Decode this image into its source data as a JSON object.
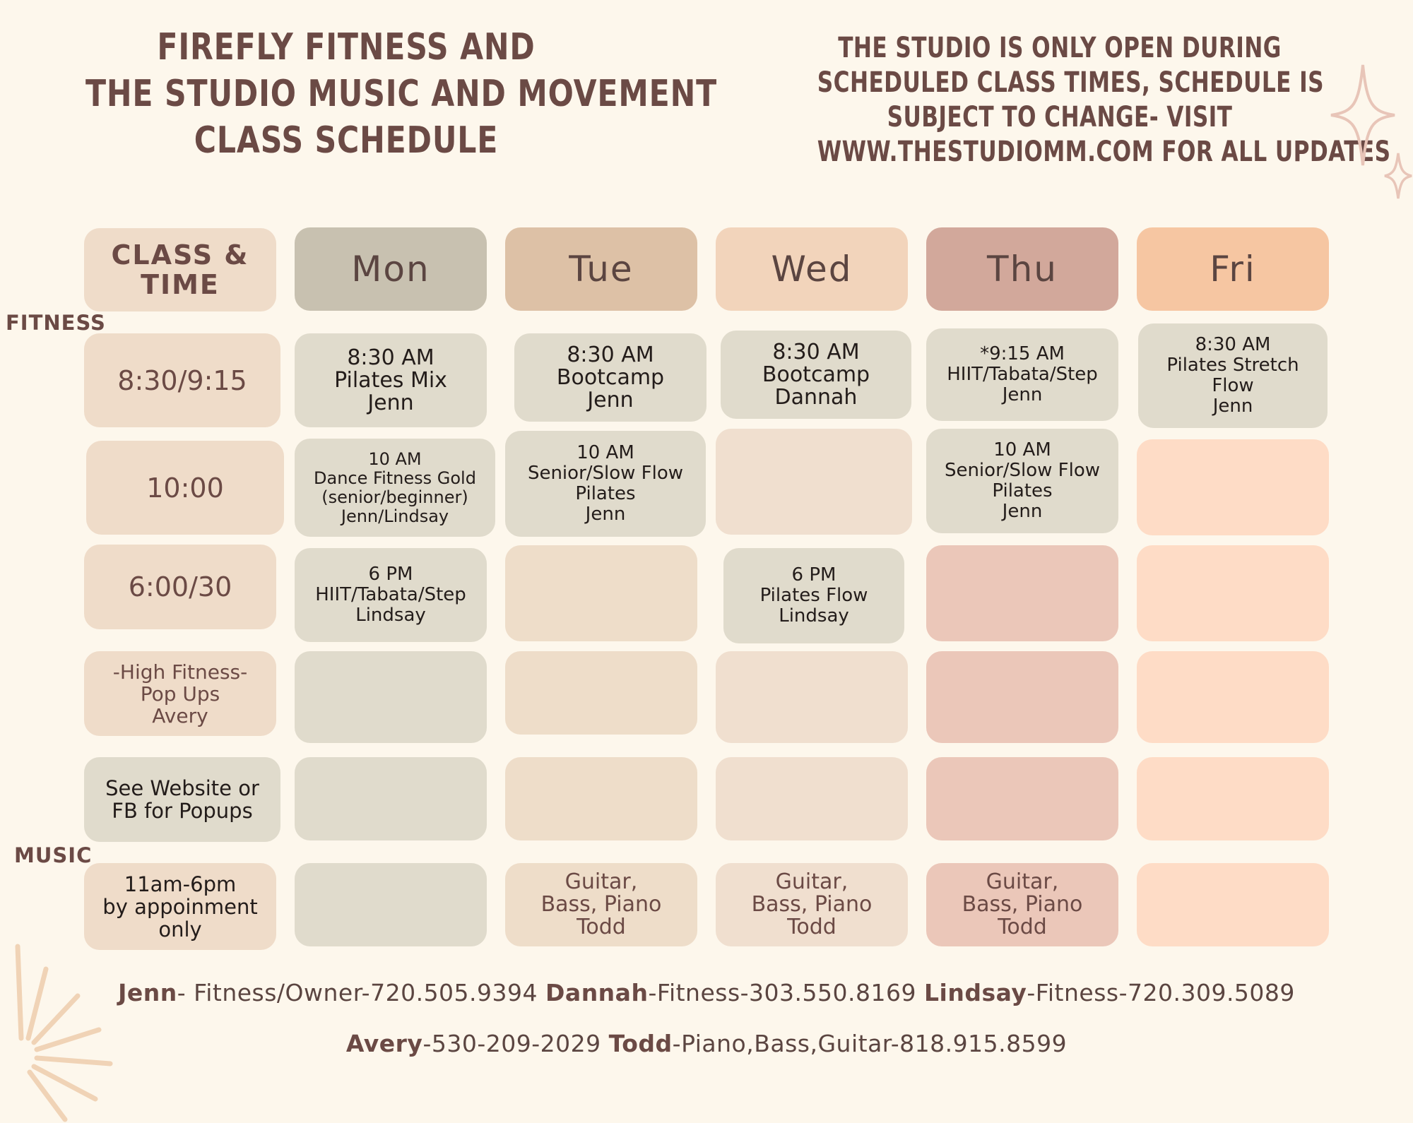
{
  "title": {
    "lines": [
      "FIREFLY FITNESS AND",
      "THE STUDIO MUSIC AND MOVEMENT",
      "CLASS SCHEDULE"
    ]
  },
  "notice": {
    "lines": [
      "THE STUDIO IS ONLY OPEN DURING",
      "SCHEDULED CLASS TIMES, SCHEDULE IS",
      "SUBJECT TO CHANGE- VISIT",
      "WWW.THESTUDIOMM.COM FOR ALL UPDATES"
    ]
  },
  "header": {
    "class_lines": [
      "CLASS &",
      "TIME"
    ],
    "days": [
      "Mon",
      "Tue",
      "Wed",
      "Thu",
      "Fri"
    ]
  },
  "sections": {
    "fitness": "FITNESS",
    "music": "MUSIC"
  },
  "rows": [
    {
      "label": [
        "8:30/9:15"
      ],
      "cells": [
        [
          "8:30 AM",
          "Pilates Mix",
          "Jenn"
        ],
        [
          "8:30 AM",
          "Bootcamp",
          "Jenn"
        ],
        [
          "8:30 AM",
          "Bootcamp",
          "Dannah"
        ],
        [
          "*9:15 AM",
          "HIIT/Tabata/Step",
          "Jenn"
        ],
        [
          "8:30 AM",
          "Pilates Stretch",
          "Flow",
          "Jenn"
        ]
      ]
    },
    {
      "label": [
        "10:00"
      ],
      "cells": [
        [
          "10 AM",
          "Dance Fitness Gold",
          "(senior/beginner)",
          "Jenn/Lindsay"
        ],
        [
          "10 AM",
          "Senior/Slow Flow",
          "Pilates",
          "Jenn"
        ],
        [],
        [
          "10 AM",
          "Senior/Slow Flow",
          "Pilates",
          "Jenn"
        ],
        []
      ]
    },
    {
      "label": [
        "6:00/30"
      ],
      "cells": [
        [
          "6 PM",
          "HIIT/Tabata/Step",
          "Lindsay"
        ],
        [],
        [
          "6 PM",
          "Pilates Flow",
          "Lindsay"
        ],
        [],
        []
      ]
    },
    {
      "label": [
        "-High Fitness-",
        "Pop Ups",
        "Avery"
      ],
      "cells": [
        [],
        [],
        [],
        [],
        []
      ]
    },
    {
      "label": [
        "See Website or",
        "FB for Popups"
      ],
      "cells": [
        [],
        [],
        [],
        [],
        []
      ]
    },
    {
      "label": [
        "11am-6pm",
        "by appoinment",
        "only"
      ],
      "cells": [
        [],
        [
          "Guitar,",
          "Bass, Piano",
          "Todd"
        ],
        [
          "Guitar,",
          "Bass, Piano",
          "Todd"
        ],
        [
          "Guitar,",
          "Bass, Piano",
          "Todd"
        ],
        []
      ]
    }
  ],
  "contacts": {
    "line1": [
      {
        "name": "Jenn",
        "info": "- Fitness/Owner-720.505.9394"
      },
      {
        "name": "Dannah",
        "info": "-Fitness-303.550.8169"
      },
      {
        "name": "Lindsay",
        "info": "-Fitness-720.309.5089"
      }
    ],
    "line2": [
      {
        "name": "Avery",
        "info": "-530-209-2029"
      },
      {
        "name": "Todd",
        "info": "-Piano,Bass,Guitar-818.915.8599"
      }
    ]
  },
  "colors": {
    "background": "#fdf7ec",
    "heading": "#6b4a45",
    "mon": "#c8c1b0",
    "tue": "#ddc1a6",
    "wed": "#f2d4bb",
    "thu": "#d2a89b",
    "fri": "#f6c6a2"
  }
}
